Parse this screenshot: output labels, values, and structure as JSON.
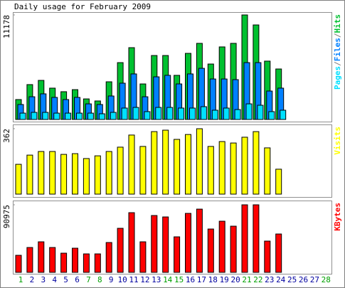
{
  "chart_data": [
    {
      "type": "bar",
      "title": "Daily usage for February 2009",
      "ylim": [
        0,
        11178
      ],
      "yticks": [
        11178
      ],
      "legend_separator": "/",
      "legend_order": "reverse",
      "series": [
        {
          "name": "Hits",
          "color": "#00c030",
          "values": [
            2130,
            3730,
            4180,
            3350,
            2970,
            3190,
            2200,
            1980,
            4030,
            6080,
            7680,
            3800,
            6840,
            6840,
            4720,
            7070,
            8140,
            5930,
            7760,
            8140,
            11178,
            10110,
            6240,
            5400,
            null,
            null,
            null,
            null
          ]
        },
        {
          "name": "Files",
          "color": "#0080ff",
          "values": [
            1600,
            2430,
            2740,
            2360,
            2130,
            2360,
            1670,
            1600,
            2510,
            3880,
            4870,
            2430,
            4560,
            4720,
            3800,
            4870,
            5470,
            4330,
            4330,
            4260,
            6080,
            6080,
            3040,
            3350,
            null,
            null,
            null,
            null
          ]
        },
        {
          "name": "Pages",
          "color": "#00e0ff",
          "values": [
            680,
            760,
            760,
            680,
            680,
            680,
            680,
            610,
            760,
            1220,
            1290,
            840,
            1290,
            1290,
            1220,
            1220,
            1370,
            990,
            1220,
            1060,
            1670,
            1520,
            840,
            990,
            null,
            null,
            null,
            null
          ]
        }
      ]
    },
    {
      "type": "bar",
      "ylim": [
        0,
        362
      ],
      "yticks": [
        362
      ],
      "series": [
        {
          "name": "Visits",
          "color": "#ffff00",
          "values": [
            165,
            216,
            236,
            236,
            220,
            224,
            197,
            212,
            236,
            260,
            327,
            264,
            346,
            354,
            303,
            330,
            362,
            264,
            291,
            283,
            315,
            346,
            256,
            138,
            null,
            null,
            null,
            null
          ]
        }
      ]
    },
    {
      "type": "bar",
      "ylim": [
        0,
        90975
      ],
      "yticks": [
        90975
      ],
      "categories": [
        "1",
        "2",
        "3",
        "4",
        "5",
        "6",
        "7",
        "8",
        "9",
        "10",
        "11",
        "12",
        "13",
        "14",
        "15",
        "16",
        "17",
        "18",
        "19",
        "20",
        "21",
        "22",
        "23",
        "24",
        "25",
        "26",
        "27",
        "28"
      ],
      "category_colors": [
        "#00a000",
        "#0000a0",
        "#0000a0",
        "#0000a0",
        "#0000a0",
        "#0000a0",
        "#00a000",
        "#00a000",
        "#0000a0",
        "#0000a0",
        "#0000a0",
        "#0000a0",
        "#0000a0",
        "#00a000",
        "#00a000",
        "#0000a0",
        "#0000a0",
        "#0000a0",
        "#0000a0",
        "#0000a0",
        "#00a000",
        "#00a000",
        "#0000a0",
        "#0000a0",
        "#0000a0",
        "#0000a0",
        "#0000a0",
        "#00a000"
      ],
      "series": [
        {
          "name": "KBytes",
          "color": "#ff0000",
          "values": [
            22970,
            33500,
            41150,
            33500,
            25840,
            32540,
            24880,
            24880,
            40200,
            59330,
            80390,
            41150,
            76560,
            74650,
            47850,
            79430,
            85170,
            58380,
            68900,
            62210,
            90975,
            90975,
            42110,
            51680,
            null,
            null,
            null,
            null
          ]
        }
      ]
    }
  ]
}
